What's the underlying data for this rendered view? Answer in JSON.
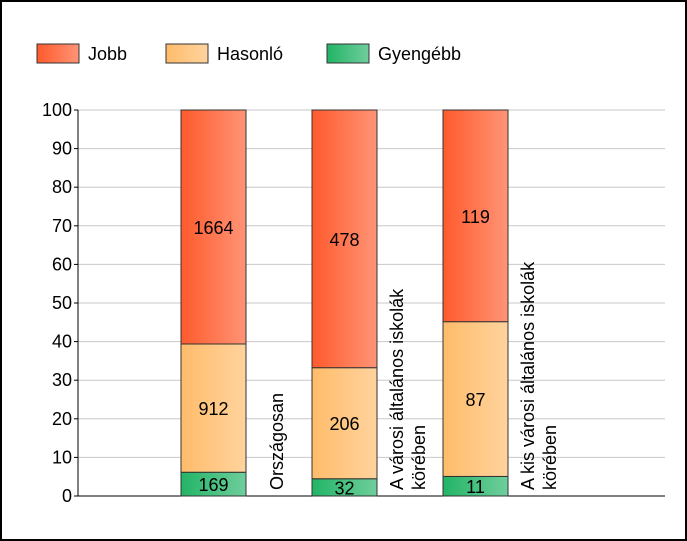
{
  "chart_data": {
    "type": "bar",
    "stacking": "percent",
    "categories": [
      "Országosan",
      "A városi általános iskolák körében",
      "A kis városi általános iskolák körében"
    ],
    "series": [
      {
        "name": "Gyengébb",
        "color": "#22b466",
        "values": [
          169,
          32,
          11
        ]
      },
      {
        "name": "Hasonló",
        "color": "#ffbc6a",
        "values": [
          912,
          206,
          87
        ]
      },
      {
        "name": "Jobb",
        "color": "#ff5a2c",
        "values": [
          1664,
          478,
          119
        ]
      }
    ],
    "legend_order": [
      "Jobb",
      "Hasonló",
      "Gyengébb"
    ],
    "ylim": [
      0,
      100
    ],
    "yticks": [
      0,
      10,
      20,
      30,
      40,
      50,
      60,
      70,
      80,
      90,
      100
    ],
    "grid": true,
    "legend": "top-left"
  }
}
